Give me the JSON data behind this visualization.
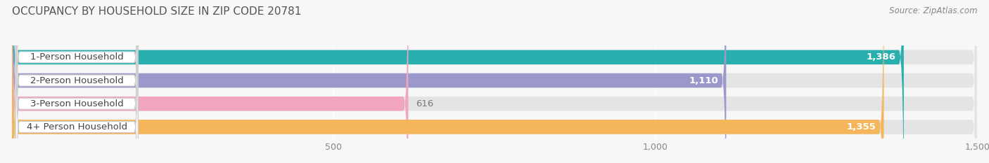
{
  "title": "OCCUPANCY BY HOUSEHOLD SIZE IN ZIP CODE 20781",
  "source": "Source: ZipAtlas.com",
  "categories": [
    "1-Person Household",
    "2-Person Household",
    "3-Person Household",
    "4+ Person Household"
  ],
  "values": [
    1386,
    1110,
    616,
    1355
  ],
  "bar_colors": [
    "#29b0ae",
    "#9b99cc",
    "#f2a5bf",
    "#f5b55a"
  ],
  "value_label_colors": [
    "white",
    "white",
    "#888888",
    "white"
  ],
  "xlim": [
    0,
    1500
  ],
  "xticks": [
    500,
    1000,
    1500
  ],
  "background_color": "#f7f7f7",
  "bar_bg_color": "#e4e4e4",
  "title_fontsize": 11,
  "source_fontsize": 8.5,
  "label_fontsize": 9.5,
  "value_fontsize": 9.5
}
